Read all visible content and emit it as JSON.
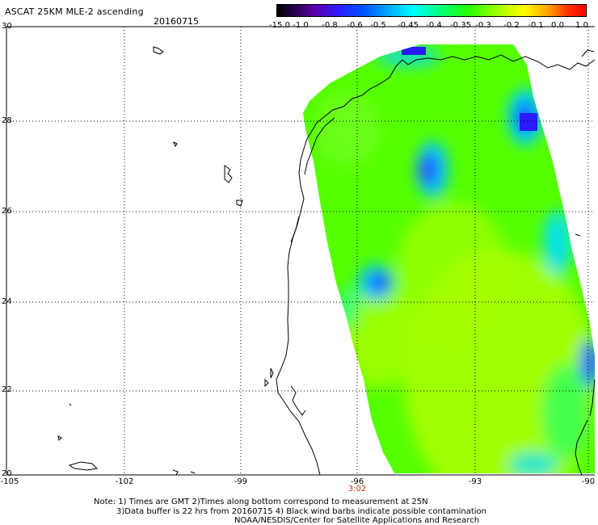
{
  "header": {
    "title": "ASCAT 25KM MLE-2 ascending",
    "date": "20160715"
  },
  "colorbar": {
    "tick_labels": [
      "-15.0",
      "-1.0",
      "-0.8",
      "-0.6",
      "-0.5",
      "-0.45",
      "-0.4",
      "-0.35",
      "-0.3",
      "-0.2",
      "-0.1",
      "0.0",
      "1.0"
    ]
  },
  "map": {
    "lat_labels": [
      "30",
      "28",
      "26",
      "24",
      "22",
      "20"
    ],
    "lon_labels": [
      "-105",
      "-102",
      "-99",
      "-96",
      "-93",
      "-90"
    ],
    "time_label": "3:02",
    "data_color": "#55ff00",
    "high_color": "#1a1aff",
    "low_color": "#a8ff00"
  },
  "footer": {
    "line1": "Note: 1) Times are GMT 2)Times along bottom correspond to measurement at 25N",
    "line2": "3)Data buffer is 22 hrs from 20160715 4) Black wind barbs indicate possible contamination",
    "line3": "NOAA/NESDIS/Center for Satellite Applications and Research"
  }
}
